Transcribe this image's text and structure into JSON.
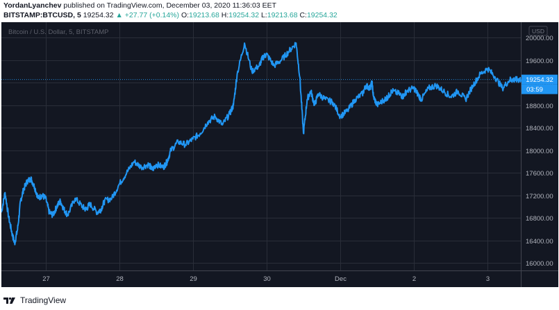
{
  "header": {
    "author": "YordanLyanchev",
    "published_text": "published on TradingView.com, December 03, 2020 11:36:03 EET",
    "symbol": "BITSTAMP:BTCUSD, 5",
    "last": "19254.32",
    "change": "+27.77 (+0.14%)",
    "o_label": "O:",
    "o_val": "19213.68",
    "h_label": "H:",
    "h_val": "19254.32",
    "l_label": "L:",
    "l_val": "19213.68",
    "c_label": "C:",
    "c_val": "19254.32"
  },
  "colors": {
    "background": "#131722",
    "line": "#2196f3",
    "grid": "#2a2e39",
    "text": "#b2b5be",
    "up": "#26a69a"
  },
  "footer": {
    "brand": "TradingView"
  },
  "chart_data": {
    "type": "line",
    "title": "Bitcoin / U.S. Dollar, 5, BITSTAMP",
    "currency": "USD",
    "xlabel": "",
    "ylabel": "",
    "ylim": [
      15870,
      20270
    ],
    "yticks": [
      16000,
      16400,
      16800,
      17200,
      17600,
      18000,
      18400,
      18800,
      19200,
      19600,
      20000
    ],
    "xticks": [
      {
        "label": "27",
        "x": 0.6
      },
      {
        "label": "28",
        "x": 1.6
      },
      {
        "label": "29",
        "x": 2.6
      },
      {
        "label": "30",
        "x": 3.6
      },
      {
        "label": "Dec",
        "x": 4.6
      },
      {
        "label": "2",
        "x": 5.6
      },
      {
        "label": "3",
        "x": 6.6
      }
    ],
    "grid": true,
    "last_price_label": "19254.32",
    "countdown_label": "03:59",
    "series": [
      {
        "x": [
          0.0,
          0.05,
          0.1,
          0.15,
          0.18,
          0.22,
          0.26,
          0.3,
          0.35,
          0.4,
          0.45,
          0.5,
          0.55,
          0.6,
          0.65,
          0.7,
          0.75,
          0.8,
          0.85,
          0.9,
          1.0,
          1.1,
          1.15,
          1.2,
          1.3,
          1.35,
          1.4,
          1.5,
          1.6,
          1.7,
          1.8,
          1.9,
          2.0,
          2.05,
          2.1,
          2.2,
          2.25,
          2.3,
          2.4,
          2.5,
          2.6,
          2.7,
          2.8,
          2.9,
          3.0,
          3.1,
          3.15,
          3.2,
          3.3,
          3.4,
          3.5,
          3.55,
          3.6,
          3.7,
          3.8,
          3.9,
          4.0,
          4.05,
          4.1,
          4.15,
          4.2,
          4.25,
          4.3,
          4.4,
          4.5,
          4.6,
          4.7,
          4.8,
          4.9,
          4.95,
          5.0,
          5.03,
          5.05,
          5.1,
          5.2,
          5.25,
          5.3,
          5.4,
          5.45,
          5.5,
          5.6,
          5.65,
          5.7,
          5.8,
          5.9,
          6.0,
          6.1,
          6.2,
          6.3,
          6.4,
          6.5,
          6.6,
          6.7,
          6.8,
          6.9,
          6.95,
          7.0,
          7.05
        ],
        "values": [
          16900,
          17250,
          16800,
          16500,
          16350,
          16600,
          17100,
          17300,
          17450,
          17500,
          17350,
          17150,
          17200,
          17150,
          16900,
          16850,
          17000,
          17100,
          16950,
          16850,
          17150,
          17000,
          16950,
          17050,
          16900,
          16950,
          17100,
          17150,
          17400,
          17600,
          17800,
          17700,
          17750,
          17650,
          17750,
          17700,
          17800,
          18000,
          18150,
          18100,
          18200,
          18300,
          18500,
          18600,
          18450,
          18650,
          18800,
          19350,
          19900,
          19400,
          19500,
          19650,
          19700,
          19500,
          19600,
          19750,
          19900,
          19300,
          18300,
          18900,
          19050,
          18800,
          19000,
          18900,
          18850,
          18600,
          18700,
          18900,
          19000,
          19150,
          19100,
          19200,
          18950,
          18800,
          18900,
          18950,
          19050,
          19000,
          18950,
          19050,
          19100,
          19000,
          18900,
          19100,
          19150,
          19050,
          18950,
          19050,
          18900,
          19150,
          19350,
          19450,
          19300,
          19100,
          19250,
          19250,
          19250,
          19254
        ]
      }
    ]
  }
}
